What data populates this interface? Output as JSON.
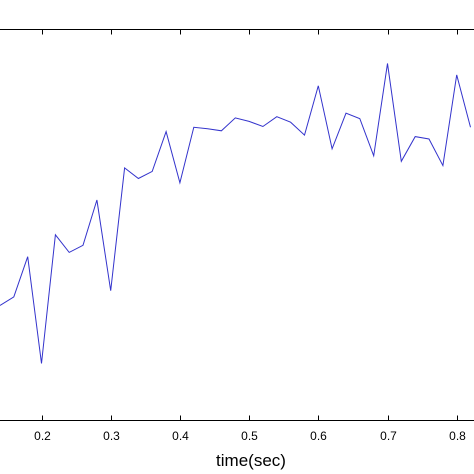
{
  "chart_data": {
    "type": "line",
    "title": "",
    "xlabel": "time(sec)",
    "ylabel": "",
    "xlim": [
      0.14,
      0.825
    ],
    "ylim": [
      0,
      1
    ],
    "grid": false,
    "x_ticks": [
      0.2,
      0.3,
      0.4,
      0.5,
      0.6,
      0.7,
      0.8
    ],
    "x_tick_labels": [
      "0.2",
      "0.3",
      "0.4",
      "0.5",
      "0.6",
      "0.7",
      "0.8"
    ],
    "series": [
      {
        "color": "#3333cc",
        "x": [
          0.14,
          0.16,
          0.18,
          0.2,
          0.22,
          0.24,
          0.26,
          0.28,
          0.3,
          0.32,
          0.34,
          0.36,
          0.38,
          0.4,
          0.42,
          0.44,
          0.46,
          0.48,
          0.5,
          0.52,
          0.54,
          0.56,
          0.58,
          0.6,
          0.62,
          0.64,
          0.66,
          0.68,
          0.7,
          0.72,
          0.74,
          0.76,
          0.78,
          0.8,
          0.82
        ],
        "y": [
          0.294,
          0.316,
          0.419,
          0.146,
          0.475,
          0.43,
          0.448,
          0.564,
          0.332,
          0.646,
          0.619,
          0.637,
          0.739,
          0.608,
          0.75,
          0.746,
          0.741,
          0.774,
          0.765,
          0.752,
          0.777,
          0.763,
          0.73,
          0.856,
          0.695,
          0.786,
          0.772,
          0.677,
          0.913,
          0.663,
          0.726,
          0.72,
          0.652,
          0.884,
          0.75
        ]
      }
    ]
  }
}
